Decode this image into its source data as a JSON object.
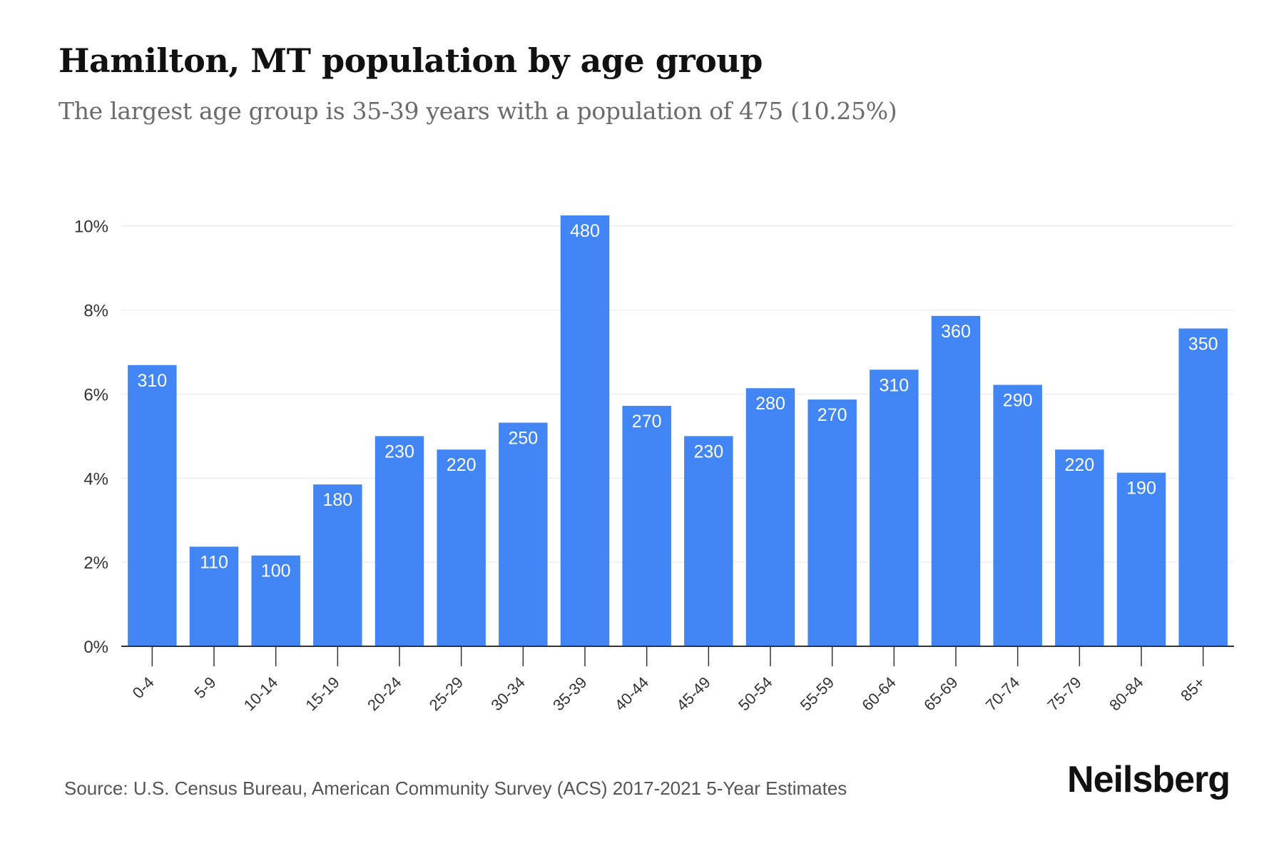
{
  "header": {
    "title": "Hamilton, MT population by age group",
    "subtitle": "The largest age group is 35-39 years with a population of 475 (10.25%)"
  },
  "footer": {
    "source": "Source: U.S. Census Bureau, American Community Survey (ACS) 2017-2021 5-Year Estimates",
    "brand": "Neilsberg"
  },
  "colors": {
    "bar": "#4285f4",
    "bar_label": "#ffffff",
    "grid": "#eeeeee",
    "axis": "#333333",
    "tick_text": "#333333"
  },
  "chart_data": {
    "type": "bar",
    "categories": [
      "0-4",
      "5-9",
      "10-14",
      "15-19",
      "20-24",
      "25-29",
      "30-34",
      "35-39",
      "40-44",
      "45-49",
      "50-54",
      "55-59",
      "60-64",
      "65-69",
      "70-74",
      "75-79",
      "80-84",
      "85+"
    ],
    "values": [
      6.69,
      2.37,
      2.16,
      3.85,
      5.0,
      4.68,
      5.32,
      10.25,
      5.72,
      5.0,
      6.14,
      5.87,
      6.58,
      7.86,
      6.22,
      4.68,
      4.13,
      7.56
    ],
    "data_labels": [
      "310",
      "110",
      "100",
      "180",
      "230",
      "220",
      "250",
      "480",
      "270",
      "230",
      "280",
      "270",
      "310",
      "360",
      "290",
      "220",
      "190",
      "350"
    ],
    "ylim": [
      0,
      10.25
    ],
    "yticks": [
      0,
      2,
      4,
      6,
      8,
      10
    ],
    "ytick_labels": [
      "0%",
      "2%",
      "4%",
      "6%",
      "8%",
      "10%"
    ],
    "grid": true,
    "xlabel": "",
    "ylabel": ""
  }
}
